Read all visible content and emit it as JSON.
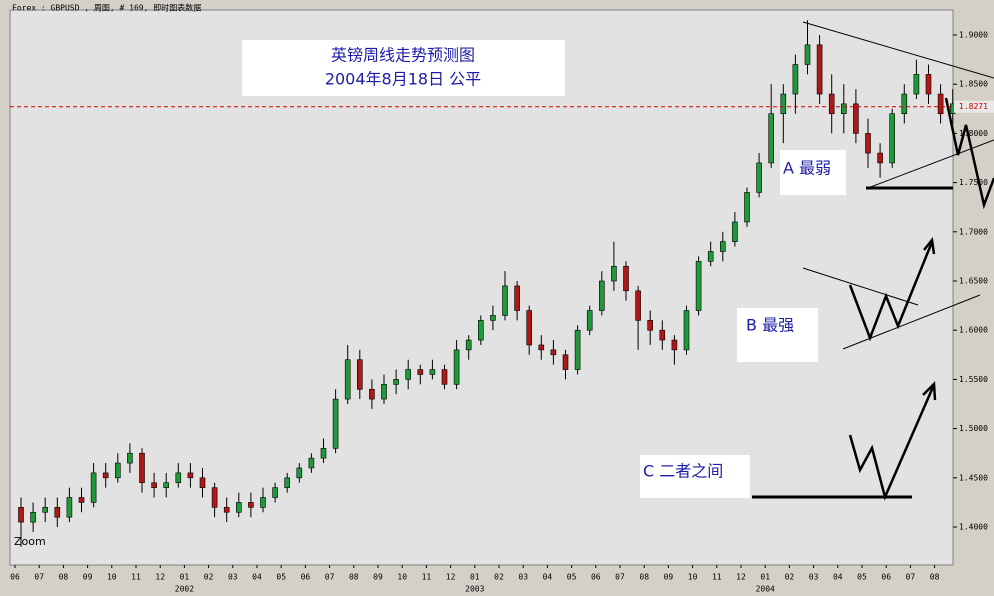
{
  "chart_data": {
    "type": "candlestick",
    "header": "Forex : GBPUSD , 周图, # 169, 即时图表数据",
    "title": "英镑周线走势预测图",
    "subtitle": "2004年8月18日  公平",
    "annotations": [
      "A  最弱",
      "B  最强",
      "C  二者之间"
    ],
    "zoom_label": "Zoom",
    "categories": [
      "06",
      "07",
      "08",
      "09",
      "10",
      "11",
      "12",
      "01",
      "02",
      "03",
      "04",
      "05",
      "06",
      "07",
      "08",
      "09",
      "10",
      "11",
      "12",
      "01",
      "02",
      "03",
      "04",
      "05",
      "06",
      "07",
      "08",
      "09",
      "10",
      "11",
      "12",
      "01",
      "02",
      "03",
      "04",
      "05",
      "06",
      "07",
      "08"
    ],
    "year_labels": [
      "2002",
      "2003",
      "2004"
    ],
    "up_color": "#1f9a3a",
    "down_color": "#b01818",
    "candles": [
      [
        1.42,
        1.43,
        1.38,
        1.405
      ],
      [
        1.405,
        1.425,
        1.395,
        1.415
      ],
      [
        1.415,
        1.43,
        1.405,
        1.42
      ],
      [
        1.42,
        1.43,
        1.4,
        1.41
      ],
      [
        1.41,
        1.44,
        1.405,
        1.43
      ],
      [
        1.43,
        1.44,
        1.415,
        1.425
      ],
      [
        1.425,
        1.465,
        1.42,
        1.455
      ],
      [
        1.455,
        1.465,
        1.44,
        1.45
      ],
      [
        1.45,
        1.475,
        1.445,
        1.465
      ],
      [
        1.465,
        1.485,
        1.455,
        1.475
      ],
      [
        1.475,
        1.48,
        1.435,
        1.445
      ],
      [
        1.445,
        1.455,
        1.43,
        1.44
      ],
      [
        1.44,
        1.455,
        1.43,
        1.445
      ],
      [
        1.445,
        1.465,
        1.44,
        1.455
      ],
      [
        1.455,
        1.465,
        1.44,
        1.45
      ],
      [
        1.45,
        1.46,
        1.43,
        1.44
      ],
      [
        1.44,
        1.445,
        1.41,
        1.42
      ],
      [
        1.42,
        1.43,
        1.405,
        1.415
      ],
      [
        1.415,
        1.435,
        1.41,
        1.425
      ],
      [
        1.425,
        1.435,
        1.41,
        1.42
      ],
      [
        1.42,
        1.44,
        1.415,
        1.43
      ],
      [
        1.43,
        1.445,
        1.425,
        1.44
      ],
      [
        1.44,
        1.455,
        1.435,
        1.45
      ],
      [
        1.45,
        1.465,
        1.445,
        1.46
      ],
      [
        1.46,
        1.475,
        1.455,
        1.47
      ],
      [
        1.47,
        1.49,
        1.465,
        1.48
      ],
      [
        1.48,
        1.54,
        1.475,
        1.53
      ],
      [
        1.53,
        1.585,
        1.525,
        1.57
      ],
      [
        1.57,
        1.58,
        1.53,
        1.54
      ],
      [
        1.54,
        1.55,
        1.52,
        1.53
      ],
      [
        1.53,
        1.555,
        1.525,
        1.545
      ],
      [
        1.545,
        1.56,
        1.535,
        1.55
      ],
      [
        1.55,
        1.57,
        1.54,
        1.56
      ],
      [
        1.56,
        1.565,
        1.545,
        1.555
      ],
      [
        1.555,
        1.57,
        1.55,
        1.56
      ],
      [
        1.56,
        1.565,
        1.54,
        1.545
      ],
      [
        1.545,
        1.59,
        1.54,
        1.58
      ],
      [
        1.58,
        1.595,
        1.57,
        1.59
      ],
      [
        1.59,
        1.615,
        1.585,
        1.61
      ],
      [
        1.61,
        1.625,
        1.6,
        1.615
      ],
      [
        1.615,
        1.66,
        1.61,
        1.645
      ],
      [
        1.645,
        1.65,
        1.61,
        1.62
      ],
      [
        1.62,
        1.625,
        1.575,
        1.585
      ],
      [
        1.585,
        1.595,
        1.57,
        1.58
      ],
      [
        1.58,
        1.59,
        1.565,
        1.575
      ],
      [
        1.575,
        1.58,
        1.55,
        1.56
      ],
      [
        1.56,
        1.605,
        1.555,
        1.6
      ],
      [
        1.6,
        1.625,
        1.595,
        1.62
      ],
      [
        1.62,
        1.66,
        1.615,
        1.65
      ],
      [
        1.65,
        1.69,
        1.64,
        1.665
      ],
      [
        1.665,
        1.67,
        1.63,
        1.64
      ],
      [
        1.64,
        1.645,
        1.58,
        1.61
      ],
      [
        1.61,
        1.62,
        1.585,
        1.6
      ],
      [
        1.6,
        1.61,
        1.58,
        1.59
      ],
      [
        1.59,
        1.595,
        1.565,
        1.58
      ],
      [
        1.58,
        1.625,
        1.575,
        1.62
      ],
      [
        1.62,
        1.675,
        1.615,
        1.67
      ],
      [
        1.67,
        1.69,
        1.665,
        1.68
      ],
      [
        1.68,
        1.7,
        1.67,
        1.69
      ],
      [
        1.69,
        1.72,
        1.685,
        1.71
      ],
      [
        1.71,
        1.745,
        1.705,
        1.74
      ],
      [
        1.74,
        1.78,
        1.735,
        1.77
      ],
      [
        1.77,
        1.85,
        1.765,
        1.82
      ],
      [
        1.82,
        1.85,
        1.79,
        1.84
      ],
      [
        1.84,
        1.88,
        1.82,
        1.87
      ],
      [
        1.87,
        1.915,
        1.86,
        1.89
      ],
      [
        1.89,
        1.9,
        1.83,
        1.84
      ],
      [
        1.84,
        1.86,
        1.8,
        1.82
      ],
      [
        1.82,
        1.85,
        1.8,
        1.83
      ],
      [
        1.83,
        1.845,
        1.79,
        1.8
      ],
      [
        1.8,
        1.815,
        1.765,
        1.78
      ],
      [
        1.78,
        1.79,
        1.755,
        1.77
      ],
      [
        1.77,
        1.825,
        1.765,
        1.82
      ],
      [
        1.82,
        1.85,
        1.81,
        1.84
      ],
      [
        1.84,
        1.875,
        1.835,
        1.86
      ],
      [
        1.86,
        1.87,
        1.83,
        1.84
      ],
      [
        1.84,
        1.85,
        1.81,
        1.82
      ],
      [
        1.82,
        1.845,
        1.81,
        1.83
      ]
    ],
    "current_price": {
      "value": 1.8271,
      "label": "1.8271"
    },
    "ylim": [
      1.3614,
      1.9254
    ],
    "yticks": [
      {
        "value": 1.4,
        "label": "1.4000"
      },
      {
        "value": 1.45,
        "label": "1.4500"
      },
      {
        "value": 1.5,
        "label": "1.5000"
      },
      {
        "value": 1.55,
        "label": "1.5500"
      },
      {
        "value": 1.6,
        "label": "1.6000"
      },
      {
        "value": 1.65,
        "label": "1.6500"
      },
      {
        "value": 1.7,
        "label": "1.7000"
      },
      {
        "value": 1.75,
        "label": "1.7500"
      },
      {
        "value": 1.8,
        "label": "1.8000"
      },
      {
        "value": 1.85,
        "label": "1.8500"
      },
      {
        "value": 1.9,
        "label": "1.9000"
      }
    ]
  }
}
